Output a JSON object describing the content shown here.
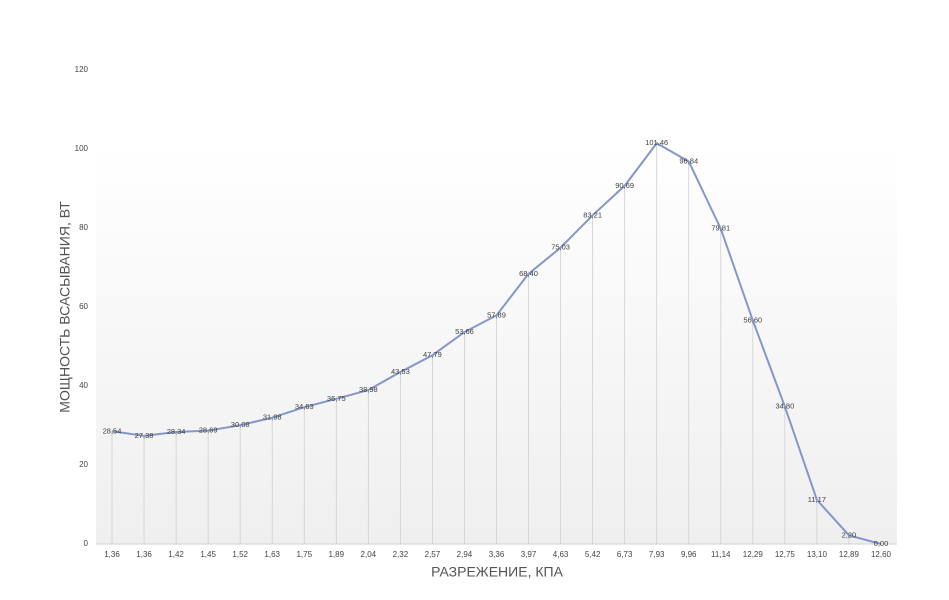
{
  "chart_data": {
    "type": "line",
    "x_label": "РАЗРЕЖЕНИЕ, КПА",
    "y_label": "МОЩНОСТЬ ВСАСЫВАНИЯ, ВТ",
    "categories": [
      "1,36",
      "1,36",
      "1,42",
      "1,45",
      "1,52",
      "1,63",
      "1,75",
      "1,89",
      "2,04",
      "2,32",
      "2,57",
      "2,94",
      "3,36",
      "3,97",
      "4,63",
      "5,42",
      "6,73",
      "7,93",
      "9,96",
      "11,14",
      "12,29",
      "12,75",
      "13,10",
      "12,89",
      "12,60"
    ],
    "values": [
      28.54,
      27.38,
      28.34,
      28.69,
      30.08,
      31.98,
      34.63,
      36.75,
      38.98,
      43.53,
      47.79,
      53.66,
      57.89,
      68.4,
      75.03,
      83.21,
      90.69,
      101.46,
      96.84,
      79.81,
      56.6,
      34.8,
      11.17,
      2.2,
      0.0
    ],
    "value_labels": [
      "28,54",
      "27,38",
      "28,34",
      "28,69",
      "30,08",
      "31,98",
      "34,63",
      "36,75",
      "38,98",
      "43,53",
      "47,79",
      "53,66",
      "57,89",
      "68,40",
      "75,03",
      "83,21",
      "90,69",
      "101,46",
      "96,84",
      "79,81",
      "56,60",
      "34,80",
      "11,17",
      "2,20",
      "0,00"
    ],
    "color": "#8497c8",
    "ylim": [
      0,
      120
    ],
    "yticks": [
      0,
      20,
      40,
      60,
      80,
      100,
      120
    ]
  }
}
